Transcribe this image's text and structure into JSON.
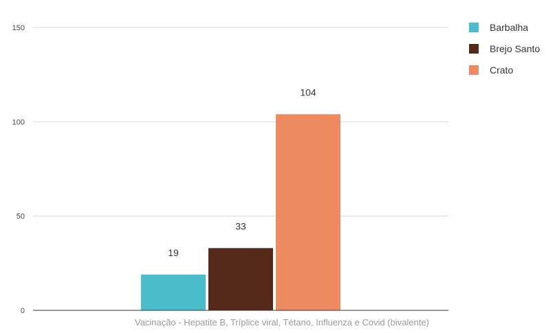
{
  "chart_data": {
    "type": "bar",
    "categories": [
      "Vacinação - Hepatite B, Tríplice viral, Tétano, Influenza e Covid (bivalente)"
    ],
    "series": [
      {
        "name": "Barbalha",
        "values": [
          19
        ],
        "color": "#4BBCC9"
      },
      {
        "name": "Brejo Santo",
        "values": [
          33
        ],
        "color": "#532A1A"
      },
      {
        "name": "Crato",
        "values": [
          104
        ],
        "color": "#EE8A5F"
      }
    ],
    "ylim": [
      0,
      150
    ],
    "yticks": [
      0,
      50,
      100,
      150
    ],
    "grid": true,
    "legend_position": "right",
    "data_labels": true,
    "title": "",
    "xlabel": "",
    "ylabel": ""
  }
}
